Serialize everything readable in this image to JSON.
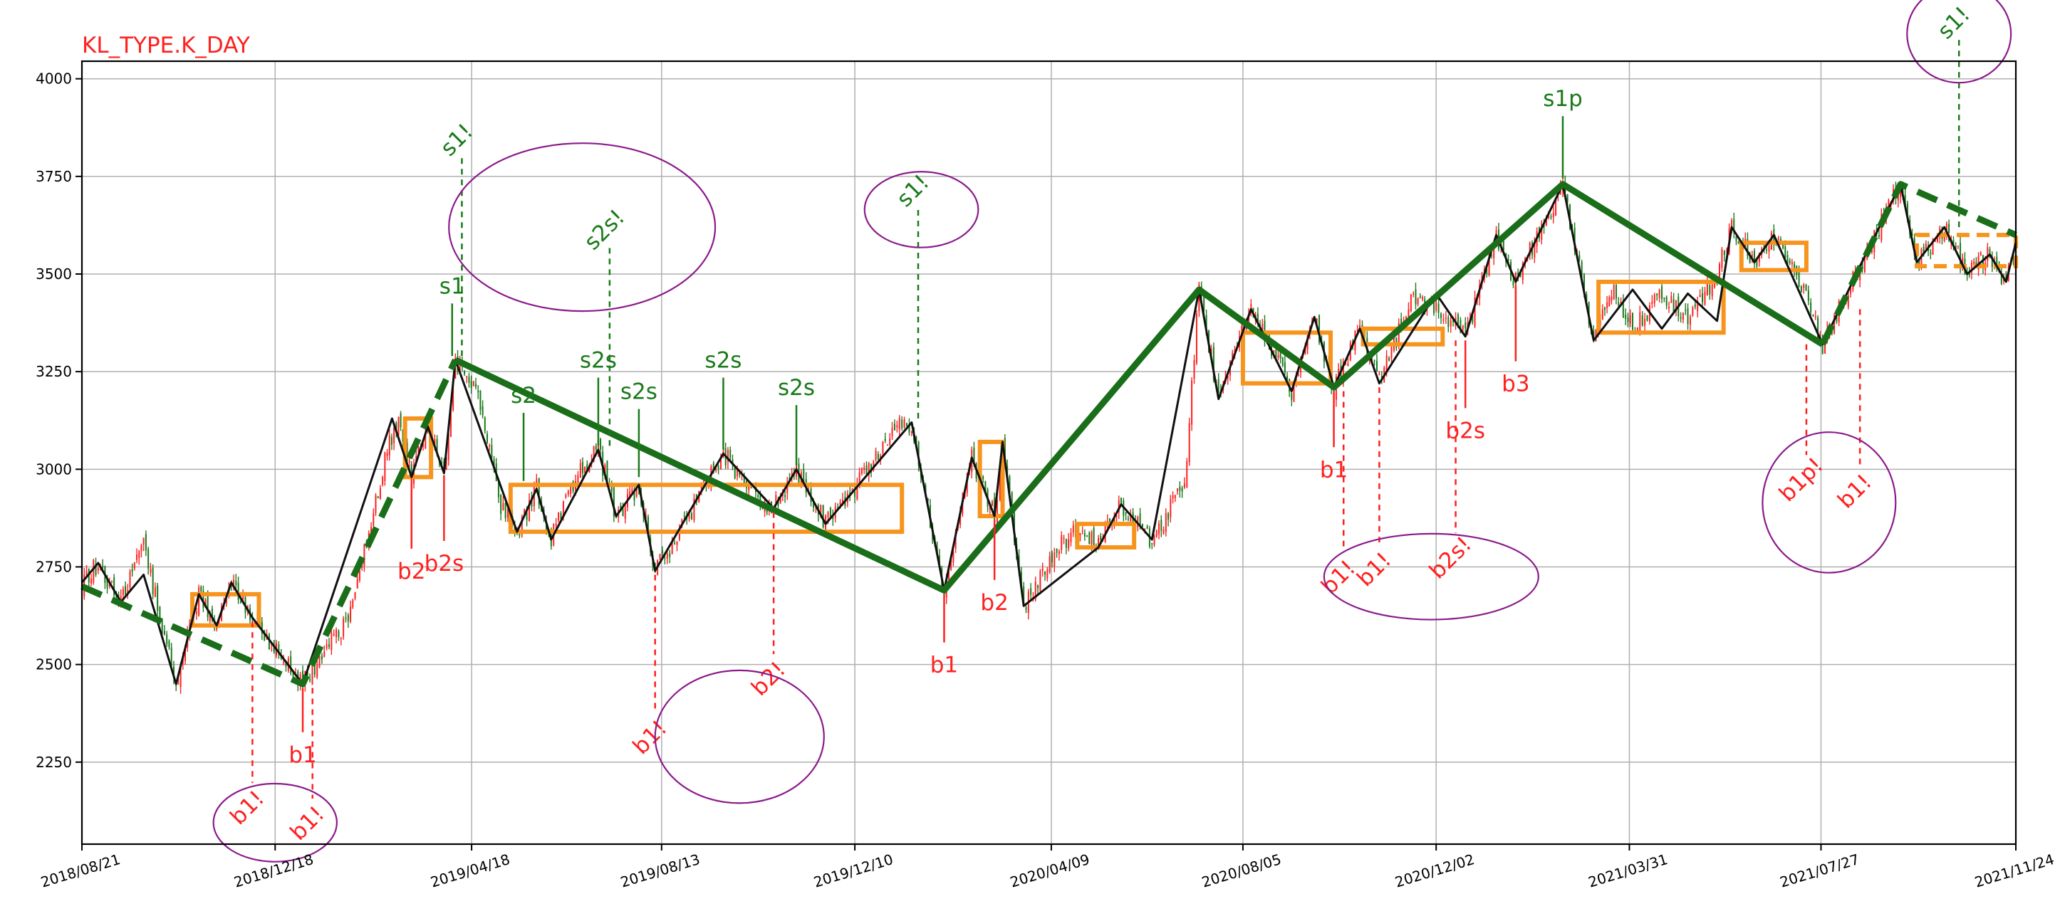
{
  "chart_data": {
    "type": "candlestick",
    "title": "KL_TYPE.K_DAY",
    "ylim": [
      2040,
      4045
    ],
    "y_ticks": [
      2250,
      2500,
      2750,
      3000,
      3250,
      3500,
      3750,
      4000
    ],
    "y_tick_labels": [
      "2250",
      "2500",
      "2750",
      "3000",
      "3250",
      "3500",
      "3750",
      "4000"
    ],
    "x_range": [
      "2018-08-21",
      "2021-11-24"
    ],
    "x_ticks": [
      "2018-08-21",
      "2018-12-18",
      "2019-04-18",
      "2019-08-13",
      "2019-12-10",
      "2020-04-09",
      "2020-08-05",
      "2020-12-02",
      "2021-03-31",
      "2021-07-27",
      "2021-11-24"
    ],
    "x_tick_labels": [
      "2018/08/21",
      "2018/12/18",
      "2019/04/18",
      "2019/08/13",
      "2019/12/10",
      "2020/04/09",
      "2020/08/05",
      "2020/12/02",
      "2021/03/31",
      "2021/07/27",
      "2021/11/24"
    ],
    "grid": true,
    "colors": {
      "up_candle": "#ff2020",
      "down_candle": "#1a7a1a",
      "bi_line": "#111111",
      "seg_line": "#1a6e1a",
      "zs_box": "#f7941d",
      "buy_signal": "#ff2020",
      "sell_signal": "#1a7a1a",
      "ellipse": "#8b1a8b",
      "grid": "#b0b0b0"
    },
    "price_path": [
      [
        "2018-08-21",
        2700
      ],
      [
        "2018-08-31",
        2760
      ],
      [
        "2018-09-14",
        2660
      ],
      [
        "2018-09-28",
        2800
      ],
      [
        "2018-10-18",
        2450
      ],
      [
        "2018-11-01",
        2680
      ],
      [
        "2018-11-12",
        2600
      ],
      [
        "2018-11-21",
        2710
      ],
      [
        "2018-12-04",
        2620
      ],
      [
        "2019-01-04",
        2450
      ],
      [
        "2019-02-01",
        2620
      ],
      [
        "2019-02-25",
        3050
      ],
      [
        "2019-03-04",
        3130
      ],
      [
        "2019-03-12",
        2980
      ],
      [
        "2019-03-22",
        3110
      ],
      [
        "2019-04-01",
        2990
      ],
      [
        "2019-04-08",
        3280
      ],
      [
        "2019-04-22",
        3200
      ],
      [
        "2019-05-06",
        2900
      ],
      [
        "2019-05-16",
        2840
      ],
      [
        "2019-05-28",
        2950
      ],
      [
        "2019-06-06",
        2820
      ],
      [
        "2019-06-24",
        3000
      ],
      [
        "2019-07-05",
        3050
      ],
      [
        "2019-07-16",
        2880
      ],
      [
        "2019-07-30",
        2960
      ],
      [
        "2019-08-09",
        2740
      ],
      [
        "2019-08-30",
        2880
      ],
      [
        "2019-09-20",
        3040
      ],
      [
        "2019-10-10",
        2930
      ],
      [
        "2019-10-21",
        2900
      ],
      [
        "2019-11-04",
        3000
      ],
      [
        "2019-11-22",
        2860
      ],
      [
        "2019-12-10",
        2950
      ],
      [
        "2020-01-02",
        3100
      ],
      [
        "2020-01-14",
        3120
      ],
      [
        "2020-02-03",
        2690
      ],
      [
        "2020-02-20",
        3030
      ],
      [
        "2020-03-05",
        2880
      ],
      [
        "2020-03-10",
        3070
      ],
      [
        "2020-03-23",
        2650
      ],
      [
        "2020-04-08",
        2770
      ],
      [
        "2020-04-24",
        2850
      ],
      [
        "2020-05-08",
        2800
      ],
      [
        "2020-05-22",
        2910
      ],
      [
        "2020-06-10",
        2820
      ],
      [
        "2020-06-30",
        2960
      ],
      [
        "2020-07-09",
        3460
      ],
      [
        "2020-07-21",
        3180
      ],
      [
        "2020-08-10",
        3410
      ],
      [
        "2020-08-24",
        3300
      ],
      [
        "2020-09-04",
        3200
      ],
      [
        "2020-09-18",
        3390
      ],
      [
        "2020-09-30",
        3210
      ],
      [
        "2020-10-16",
        3360
      ],
      [
        "2020-10-28",
        3220
      ],
      [
        "2020-11-18",
        3450
      ],
      [
        "2020-12-02",
        3420
      ],
      [
        "2020-12-20",
        3340
      ],
      [
        "2021-01-08",
        3600
      ],
      [
        "2021-01-20",
        3480
      ],
      [
        "2021-02-18",
        3730
      ],
      [
        "2021-03-09",
        3330
      ],
      [
        "2021-03-20",
        3460
      ],
      [
        "2021-04-02",
        3360
      ],
      [
        "2021-04-20",
        3450
      ],
      [
        "2021-05-06",
        3380
      ],
      [
        "2021-05-24",
        3500
      ],
      [
        "2021-06-02",
        3620
      ],
      [
        "2021-06-16",
        3530
      ],
      [
        "2021-06-28",
        3600
      ],
      [
        "2021-07-12",
        3500
      ],
      [
        "2021-07-28",
        3320
      ],
      [
        "2021-08-20",
        3520
      ],
      [
        "2021-09-14",
        3730
      ],
      [
        "2021-09-24",
        3530
      ],
      [
        "2021-10-11",
        3620
      ],
      [
        "2021-10-25",
        3500
      ],
      [
        "2021-11-08",
        3550
      ],
      [
        "2021-11-18",
        3480
      ],
      [
        "2021-11-24",
        3580
      ]
    ],
    "bi_points": [
      [
        "2018-08-21",
        2710
      ],
      [
        "2018-08-31",
        2760
      ],
      [
        "2018-09-14",
        2660
      ],
      [
        "2018-09-28",
        2730
      ],
      [
        "2018-10-18",
        2450
      ],
      [
        "2018-11-01",
        2680
      ],
      [
        "2018-11-12",
        2600
      ],
      [
        "2018-11-21",
        2710
      ],
      [
        "2018-12-04",
        2620
      ],
      [
        "2019-01-04",
        2450
      ],
      [
        "2019-02-28",
        3130
      ],
      [
        "2019-03-12",
        2980
      ],
      [
        "2019-03-22",
        3110
      ],
      [
        "2019-04-01",
        2990
      ],
      [
        "2019-04-08",
        3280
      ],
      [
        "2019-05-16",
        2840
      ],
      [
        "2019-05-28",
        2950
      ],
      [
        "2019-06-06",
        2820
      ],
      [
        "2019-07-05",
        3050
      ],
      [
        "2019-07-16",
        2880
      ],
      [
        "2019-07-30",
        2960
      ],
      [
        "2019-08-09",
        2740
      ],
      [
        "2019-09-20",
        3040
      ],
      [
        "2019-10-21",
        2900
      ],
      [
        "2019-11-04",
        3000
      ],
      [
        "2019-11-22",
        2860
      ],
      [
        "2020-01-14",
        3120
      ],
      [
        "2020-02-03",
        2690
      ],
      [
        "2020-02-20",
        3030
      ],
      [
        "2020-03-05",
        2880
      ],
      [
        "2020-03-10",
        3070
      ],
      [
        "2020-03-23",
        2650
      ],
      [
        "2020-05-08",
        2800
      ],
      [
        "2020-05-22",
        2910
      ],
      [
        "2020-06-10",
        2820
      ],
      [
        "2020-07-09",
        3460
      ],
      [
        "2020-07-21",
        3180
      ],
      [
        "2020-08-10",
        3410
      ],
      [
        "2020-09-04",
        3200
      ],
      [
        "2020-09-18",
        3390
      ],
      [
        "2020-09-30",
        3210
      ],
      [
        "2020-10-16",
        3360
      ],
      [
        "2020-10-28",
        3220
      ],
      [
        "2020-12-02",
        3450
      ],
      [
        "2020-12-20",
        3340
      ],
      [
        "2021-01-08",
        3600
      ],
      [
        "2021-01-20",
        3480
      ],
      [
        "2021-02-18",
        3730
      ],
      [
        "2021-03-09",
        3330
      ],
      [
        "2021-04-02",
        3460
      ],
      [
        "2021-04-20",
        3360
      ],
      [
        "2021-05-06",
        3450
      ],
      [
        "2021-05-24",
        3380
      ],
      [
        "2021-06-02",
        3620
      ],
      [
        "2021-06-16",
        3530
      ],
      [
        "2021-06-28",
        3600
      ],
      [
        "2021-07-28",
        3320
      ],
      [
        "2021-08-20",
        3520
      ],
      [
        "2021-09-14",
        3730
      ],
      [
        "2021-09-24",
        3530
      ],
      [
        "2021-10-11",
        3620
      ],
      [
        "2021-10-25",
        3500
      ],
      [
        "2021-11-08",
        3550
      ],
      [
        "2021-11-18",
        3480
      ],
      [
        "2021-11-24",
        3580
      ]
    ],
    "seg_solid": [
      [
        "2019-04-08",
        3280
      ],
      [
        "2020-02-03",
        2690
      ],
      [
        "2020-07-09",
        3460
      ],
      [
        "2020-09-30",
        3210
      ],
      [
        "2021-02-18",
        3730
      ],
      [
        "2021-07-28",
        3320
      ]
    ],
    "seg_dashed": [
      [
        [
          "2018-08-21",
          2700
        ],
        [
          "2019-01-04",
          2450
        ],
        [
          "2019-04-08",
          3280
        ]
      ],
      [
        [
          "2021-07-28",
          3320
        ],
        [
          "2021-09-14",
          3730
        ],
        [
          "2021-11-24",
          3600
        ]
      ]
    ],
    "zs_boxes": [
      {
        "start": "2018-10-28",
        "end": "2018-12-08",
        "low": 2600,
        "high": 2680,
        "style": "solid"
      },
      {
        "start": "2019-03-08",
        "end": "2019-03-24",
        "low": 2980,
        "high": 3130,
        "style": "solid"
      },
      {
        "start": "2019-05-12",
        "end": "2020-01-08",
        "low": 2840,
        "high": 2960,
        "style": "solid"
      },
      {
        "start": "2020-02-25",
        "end": "2020-03-10",
        "low": 2880,
        "high": 3070,
        "style": "solid"
      },
      {
        "start": "2020-04-25",
        "end": "2020-05-30",
        "low": 2800,
        "high": 2860,
        "style": "solid"
      },
      {
        "start": "2020-08-05",
        "end": "2020-09-28",
        "low": 3220,
        "high": 3350,
        "style": "solid"
      },
      {
        "start": "2020-10-18",
        "end": "2020-12-06",
        "low": 3320,
        "high": 3360,
        "style": "solid"
      },
      {
        "start": "2021-03-12",
        "end": "2021-05-28",
        "low": 3350,
        "high": 3480,
        "style": "solid"
      },
      {
        "start": "2021-06-08",
        "end": "2021-07-18",
        "low": 3510,
        "high": 3580,
        "style": "solid"
      },
      {
        "start": "2021-09-24",
        "end": "2021-11-24",
        "low": 3520,
        "high": 3600,
        "style": "dashed"
      }
    ],
    "signals": [
      {
        "label": "s1",
        "side": "sell",
        "date": "2019-04-06",
        "y": 3290,
        "label_y": 3450,
        "rotated": false,
        "dashed": false
      },
      {
        "label": "s2",
        "side": "sell",
        "date": "2019-05-20",
        "y": 2970,
        "label_y": 3170,
        "rotated": false,
        "dashed": false
      },
      {
        "label": "s2s",
        "side": "sell",
        "date": "2019-07-05",
        "y": 3060,
        "label_y": 3260,
        "rotated": false,
        "dashed": false
      },
      {
        "label": "s2s",
        "side": "sell",
        "date": "2019-07-30",
        "y": 2980,
        "label_y": 3180,
        "rotated": false,
        "dashed": false
      },
      {
        "label": "s2s",
        "side": "sell",
        "date": "2019-09-20",
        "y": 3050,
        "label_y": 3260,
        "rotated": false,
        "dashed": false
      },
      {
        "label": "s2s",
        "side": "sell",
        "date": "2019-11-04",
        "y": 3010,
        "label_y": 3190,
        "rotated": false,
        "dashed": false
      },
      {
        "label": "s1p",
        "side": "sell",
        "date": "2021-02-18",
        "y": 3745,
        "label_y": 3930,
        "rotated": false,
        "dashed": false
      },
      {
        "label": "s1!",
        "side": "sell",
        "date": "2019-04-12",
        "y": 3290,
        "label_y": 3830,
        "rotated": true,
        "dashed": true
      },
      {
        "label": "s2s!",
        "side": "sell",
        "date": "2019-07-12",
        "y": 3060,
        "label_y": 3600,
        "rotated": true,
        "dashed": true
      },
      {
        "label": "s1!",
        "side": "sell",
        "date": "2020-01-18",
        "y": 3130,
        "label_y": 3700,
        "rotated": true,
        "dashed": true
      },
      {
        "label": "s1!",
        "side": "sell",
        "date": "2021-10-20",
        "y": 3620,
        "label_y": 4130,
        "rotated": true,
        "dashed": true
      },
      {
        "label": "b1",
        "side": "buy",
        "date": "2019-01-04",
        "y": 2440,
        "label_y": 2250,
        "rotated": false,
        "dashed": false
      },
      {
        "label": "b2",
        "side": "buy",
        "date": "2019-03-12",
        "y": 2975,
        "label_y": 2720,
        "rotated": false,
        "dashed": false
      },
      {
        "label": "b2s",
        "side": "buy",
        "date": "2019-04-01",
        "y": 2985,
        "label_y": 2740,
        "rotated": false,
        "dashed": false
      },
      {
        "label": "b1",
        "side": "buy",
        "date": "2020-02-03",
        "y": 2680,
        "label_y": 2480,
        "rotated": false,
        "dashed": false
      },
      {
        "label": "b2",
        "side": "buy",
        "date": "2020-03-05",
        "y": 2870,
        "label_y": 2640,
        "rotated": false,
        "dashed": false
      },
      {
        "label": "b1",
        "side": "buy",
        "date": "2020-09-30",
        "y": 3200,
        "label_y": 2980,
        "rotated": false,
        "dashed": false
      },
      {
        "label": "b2s",
        "side": "buy",
        "date": "2020-12-20",
        "y": 3330,
        "label_y": 3080,
        "rotated": false,
        "dashed": false
      },
      {
        "label": "b3",
        "side": "buy",
        "date": "2021-01-20",
        "y": 3470,
        "label_y": 3200,
        "rotated": false,
        "dashed": false
      },
      {
        "label": "b1!",
        "side": "buy",
        "date": "2018-12-04",
        "y": 2610,
        "label_y": 2120,
        "rotated": true,
        "dashed": true
      },
      {
        "label": "b1!",
        "side": "buy",
        "date": "2019-01-10",
        "y": 2440,
        "label_y": 2080,
        "rotated": true,
        "dashed": true
      },
      {
        "label": "b1!",
        "side": "buy",
        "date": "2019-08-09",
        "y": 2730,
        "label_y": 2300,
        "rotated": true,
        "dashed": true
      },
      {
        "label": "b2!",
        "side": "buy",
        "date": "2019-10-21",
        "y": 2890,
        "label_y": 2450,
        "rotated": true,
        "dashed": true
      },
      {
        "label": "b1!",
        "side": "buy",
        "date": "2020-10-06",
        "y": 3200,
        "label_y": 2710,
        "rotated": true,
        "dashed": true
      },
      {
        "label": "b1!",
        "side": "buy",
        "date": "2020-10-28",
        "y": 3210,
        "label_y": 2730,
        "rotated": true,
        "dashed": true
      },
      {
        "label": "b2s!",
        "side": "buy",
        "date": "2020-12-14",
        "y": 3330,
        "label_y": 2760,
        "rotated": true,
        "dashed": true
      },
      {
        "label": "b1p!",
        "side": "buy",
        "date": "2021-07-18",
        "y": 3320,
        "label_y": 2960,
        "rotated": true,
        "dashed": true
      },
      {
        "label": "b1!",
        "side": "buy",
        "date": "2021-08-20",
        "y": 3410,
        "label_y": 2930,
        "rotated": true,
        "dashed": true
      }
    ],
    "ellipses": [
      {
        "date": "2018-12-18",
        "y": 2095,
        "rx_days": 38,
        "ry_value": 100
      },
      {
        "date": "2019-06-25",
        "y": 3620,
        "rx_days": 82,
        "ry_value": 215
      },
      {
        "date": "2019-09-30",
        "y": 2315,
        "rx_days": 52,
        "ry_value": 170
      },
      {
        "date": "2020-01-20",
        "y": 3665,
        "rx_days": 35,
        "ry_value": 97
      },
      {
        "date": "2020-11-29",
        "y": 2725,
        "rx_days": 66,
        "ry_value": 110
      },
      {
        "date": "2021-08-01",
        "y": 2915,
        "rx_days": 41,
        "ry_value": 180
      },
      {
        "date": "2021-10-20",
        "y": 4115,
        "rx_days": 32,
        "ry_value": 125
      }
    ]
  }
}
